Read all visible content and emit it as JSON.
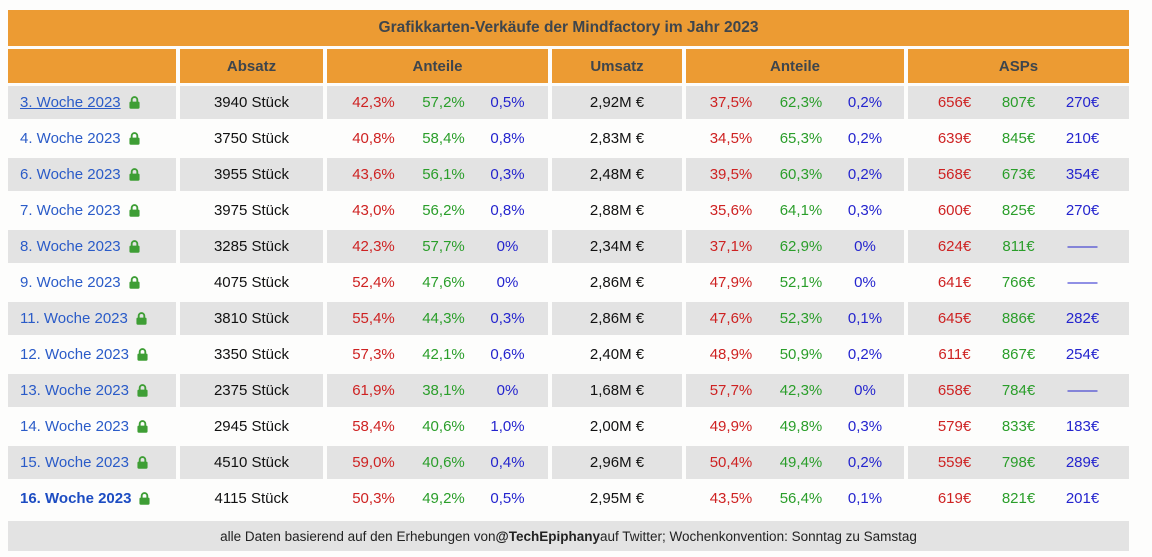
{
  "title": "Grafikkarten-Verkäufe der Mindfactory im Jahr 2023",
  "columns": {
    "week": "",
    "absatz": "Absatz",
    "anteile1": "Anteile",
    "umsatz": "Umsatz",
    "anteile2": "Anteile",
    "asps": "ASPs"
  },
  "colors": {
    "orange": "#EC9B33",
    "dark": "#3E454C",
    "rowgray": "#E3E3E3",
    "red": "#CE2222",
    "green": "#2A9E2A",
    "blue": "#2424CE",
    "link": "#2A5BC8",
    "linkbold": "#1C4CC2",
    "lock": "#3E9E35"
  },
  "rows": [
    {
      "week": "3. Woche 2023",
      "underline": true,
      "bold": false,
      "absatz": "3940 Stück",
      "anteile1": [
        "42,3%",
        "57,2%",
        "0,5%"
      ],
      "umsatz": "2,92M €",
      "anteile2": [
        "37,5%",
        "62,3%",
        "0,2%"
      ],
      "asps": [
        "656€",
        "807€",
        "270€"
      ]
    },
    {
      "week": "4. Woche 2023",
      "underline": false,
      "bold": false,
      "absatz": "3750 Stück",
      "anteile1": [
        "40,8%",
        "58,4%",
        "0,8%"
      ],
      "umsatz": "2,83M €",
      "anteile2": [
        "34,5%",
        "65,3%",
        "0,2%"
      ],
      "asps": [
        "639€",
        "845€",
        "210€"
      ]
    },
    {
      "week": "6. Woche 2023",
      "underline": false,
      "bold": false,
      "absatz": "3955 Stück",
      "anteile1": [
        "43,6%",
        "56,1%",
        "0,3%"
      ],
      "umsatz": "2,48M €",
      "anteile2": [
        "39,5%",
        "60,3%",
        "0,2%"
      ],
      "asps": [
        "568€",
        "673€",
        "354€"
      ]
    },
    {
      "week": "7. Woche 2023",
      "underline": false,
      "bold": false,
      "absatz": "3975 Stück",
      "anteile1": [
        "43,0%",
        "56,2%",
        "0,8%"
      ],
      "umsatz": "2,88M €",
      "anteile2": [
        "35,6%",
        "64,1%",
        "0,3%"
      ],
      "asps": [
        "600€",
        "825€",
        "270€"
      ]
    },
    {
      "week": "8. Woche 2023",
      "underline": false,
      "bold": false,
      "absatz": "3285 Stück",
      "anteile1": [
        "42,3%",
        "57,7%",
        "0%"
      ],
      "umsatz": "2,34M €",
      "anteile2": [
        "37,1%",
        "62,9%",
        "0%"
      ],
      "asps": [
        "624€",
        "811€",
        "——"
      ]
    },
    {
      "week": "9. Woche 2023",
      "underline": false,
      "bold": false,
      "absatz": "4075 Stück",
      "anteile1": [
        "52,4%",
        "47,6%",
        "0%"
      ],
      "umsatz": "2,86M €",
      "anteile2": [
        "47,9%",
        "52,1%",
        "0%"
      ],
      "asps": [
        "641€",
        "766€",
        "——"
      ]
    },
    {
      "week": "11. Woche 2023",
      "underline": false,
      "bold": false,
      "absatz": "3810 Stück",
      "anteile1": [
        "55,4%",
        "44,3%",
        "0,3%"
      ],
      "umsatz": "2,86M €",
      "anteile2": [
        "47,6%",
        "52,3%",
        "0,1%"
      ],
      "asps": [
        "645€",
        "886€",
        "282€"
      ]
    },
    {
      "week": "12. Woche 2023",
      "underline": false,
      "bold": false,
      "absatz": "3350 Stück",
      "anteile1": [
        "57,3%",
        "42,1%",
        "0,6%"
      ],
      "umsatz": "2,40M €",
      "anteile2": [
        "48,9%",
        "50,9%",
        "0,2%"
      ],
      "asps": [
        "611€",
        "867€",
        "254€"
      ]
    },
    {
      "week": "13. Woche 2023",
      "underline": false,
      "bold": false,
      "absatz": "2375 Stück",
      "anteile1": [
        "61,9%",
        "38,1%",
        "0%"
      ],
      "umsatz": "1,68M €",
      "anteile2": [
        "57,7%",
        "42,3%",
        "0%"
      ],
      "asps": [
        "658€",
        "784€",
        "——"
      ]
    },
    {
      "week": "14. Woche 2023",
      "underline": false,
      "bold": false,
      "absatz": "2945 Stück",
      "anteile1": [
        "58,4%",
        "40,6%",
        "1,0%"
      ],
      "umsatz": "2,00M €",
      "anteile2": [
        "49,9%",
        "49,8%",
        "0,3%"
      ],
      "asps": [
        "579€",
        "833€",
        "183€"
      ]
    },
    {
      "week": "15. Woche 2023",
      "underline": false,
      "bold": false,
      "absatz": "4510 Stück",
      "anteile1": [
        "59,0%",
        "40,6%",
        "0,4%"
      ],
      "umsatz": "2,96M €",
      "anteile2": [
        "50,4%",
        "49,4%",
        "0,2%"
      ],
      "asps": [
        "559€",
        "798€",
        "289€"
      ]
    },
    {
      "week": "16. Woche 2023",
      "underline": false,
      "bold": true,
      "absatz": "4115 Stück",
      "anteile1": [
        "50,3%",
        "49,2%",
        "0,5%"
      ],
      "umsatz": "2,95M €",
      "anteile2": [
        "43,5%",
        "56,4%",
        "0,1%"
      ],
      "asps": [
        "619€",
        "821€",
        "201€"
      ]
    }
  ],
  "footer": {
    "pre": "alle Daten basierend auf den Erhebungen von ",
    "handle": "@TechEpiphany",
    "post": " auf Twitter; Wochenkonvention: Sonntag zu Samstag"
  }
}
